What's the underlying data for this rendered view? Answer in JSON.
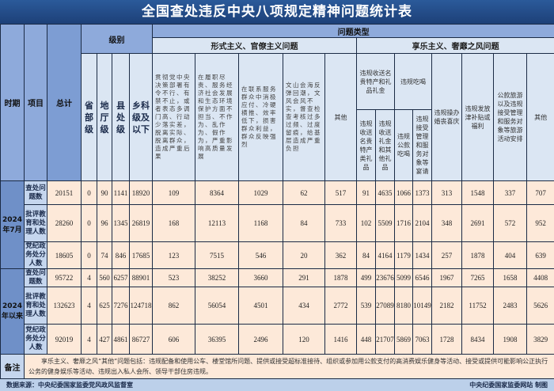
{
  "title": "全国查处违反中央八项规定精神问题统计表",
  "header": {
    "period": "时期",
    "item": "项目",
    "total": "总计",
    "level": "级别",
    "levels": [
      "省部级",
      "地厅级",
      "县处级",
      "乡科级及以下"
    ],
    "problem_type": "问题类型",
    "formalism": "形式主义、官僚主义问题",
    "formalism_cols": [
      "贯彻党中央决策部署有令不行、有禁不止，或者表态多调门高、行动少落实差，脱离实际、脱离群众，造成严重后果",
      "在履职尽责、服务经济社会发展和生态环境保护方面不担当、不作为、乱作为、假作为，严重影响高质量发展",
      "在联系服务群众中消极应付、冷硬横推、效率低下，损害群众利益，群众反映强烈",
      "文山会海反弹回潮，文风会风不实，督查检查考核过多过频、过度留痕，给基层造成严重负担",
      "其他"
    ],
    "hedonism": "享乐主义、奢靡之风问题",
    "gifts": "违规收送名贵特产和礼品礼金",
    "gifts_sub": [
      "违规收送名贵特产类礼品",
      "违规收送礼金和其他礼品"
    ],
    "dining": "违规吃喝",
    "dining_sub": [
      "违规公款吃喝",
      "违规接受管理和服务对象等宴请"
    ],
    "hedonism_cols": [
      "违规操办婚丧喜庆",
      "违规发放津补贴或福利",
      "公款旅游以及违规接受管理和服务对象等旅游活动安排",
      "其他"
    ]
  },
  "groups": [
    {
      "period": "2024年7月",
      "rows": [
        {
          "item": "查处问题数",
          "values": [
            "20151",
            "0",
            "90",
            "1141",
            "18920",
            "109",
            "8364",
            "1029",
            "62",
            "517",
            "91",
            "4635",
            "1066",
            "1373",
            "313",
            "1548",
            "337",
            "707"
          ]
        },
        {
          "item": "批评教育和处理人数",
          "values": [
            "28260",
            "0",
            "96",
            "1345",
            "26819",
            "168",
            "12113",
            "1168",
            "84",
            "733",
            "102",
            "5509",
            "1716",
            "2104",
            "348",
            "2691",
            "572",
            "952"
          ]
        },
        {
          "item": "党纪政务处分人数",
          "values": [
            "18605",
            "0",
            "74",
            "846",
            "17685",
            "123",
            "7515",
            "546",
            "20",
            "362",
            "84",
            "4164",
            "1179",
            "1434",
            "257",
            "1878",
            "404",
            "639"
          ]
        }
      ]
    },
    {
      "period": "2024年以来",
      "rows": [
        {
          "item": "查处问题数",
          "values": [
            "95722",
            "4",
            "560",
            "6257",
            "88901",
            "523",
            "38252",
            "3660",
            "291",
            "1878",
            "499",
            "23676",
            "5099",
            "6546",
            "1967",
            "7265",
            "1658",
            "4408"
          ]
        },
        {
          "item": "批评教育和处理人数",
          "values": [
            "132623",
            "4",
            "625",
            "7276",
            "124718",
            "862",
            "56054",
            "4501",
            "434",
            "2772",
            "539",
            "27089",
            "8180",
            "10149",
            "2182",
            "11752",
            "2483",
            "5626"
          ]
        },
        {
          "item": "党纪政务处分人数",
          "values": [
            "92019",
            "4",
            "427",
            "4861",
            "86727",
            "606",
            "36395",
            "2496",
            "120",
            "1416",
            "448",
            "21707",
            "5869",
            "7063",
            "1728",
            "8434",
            "1908",
            "3829"
          ]
        }
      ]
    }
  ],
  "note_label": "备注",
  "note": "享乐主义、奢靡之风“其他”问题包括：违规配备和使用公车、楼堂馆所问题、提供或接受超标准接待、组织或参加用公款支付的高消费娱乐健身等活动、接受或提供可能影响公正执行公务的健身娱乐等活动、违规出入私人会所、领导干部住房违规。",
  "footer": {
    "source": "数据来源：中央纪委国家监委党风政风监督室",
    "credit": "中央纪委国家监委网站 制图"
  }
}
